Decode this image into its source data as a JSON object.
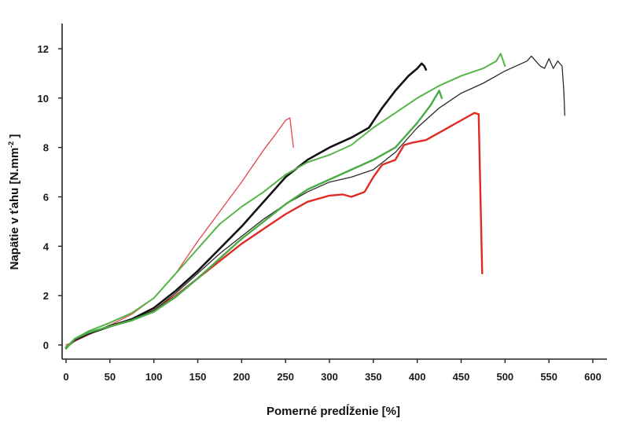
{
  "chart_data": {
    "type": "line",
    "title": "",
    "xlabel": "Pomerné predĺženie [%]",
    "ylabel_main": "Napätie v ťahu [N.mm",
    "ylabel_sup": "-2",
    "ylabel_end": " ]",
    "xlim": [
      0,
      600
    ],
    "ylim": [
      0,
      12
    ],
    "xticks": [
      "0",
      "50",
      "100",
      "150",
      "200",
      "250",
      "300",
      "350",
      "400",
      "450",
      "500",
      "550",
      "600"
    ],
    "yticks": [
      "0",
      "2",
      "4",
      "6",
      "8",
      "10",
      "12"
    ],
    "grid": false,
    "legend": "none",
    "series": [
      {
        "color": "#e8434b",
        "width": 1.3,
        "points": [
          [
            0,
            0
          ],
          [
            10,
            0.15
          ],
          [
            25,
            0.4
          ],
          [
            50,
            0.8
          ],
          [
            75,
            1.25
          ],
          [
            100,
            1.9
          ],
          [
            125,
            2.9
          ],
          [
            150,
            4.2
          ],
          [
            175,
            5.4
          ],
          [
            200,
            6.6
          ],
          [
            225,
            7.9
          ],
          [
            240,
            8.6
          ],
          [
            250,
            9.1
          ],
          [
            255,
            9.2
          ],
          [
            257,
            8.6
          ],
          [
            259,
            8.0
          ]
        ]
      },
      {
        "color": "#e02b25",
        "width": 2.4,
        "points": [
          [
            0,
            -0.1
          ],
          [
            10,
            0.2
          ],
          [
            25,
            0.45
          ],
          [
            50,
            0.75
          ],
          [
            75,
            1.0
          ],
          [
            100,
            1.4
          ],
          [
            125,
            2.0
          ],
          [
            150,
            2.7
          ],
          [
            175,
            3.4
          ],
          [
            200,
            4.1
          ],
          [
            225,
            4.7
          ],
          [
            250,
            5.3
          ],
          [
            275,
            5.8
          ],
          [
            300,
            6.05
          ],
          [
            315,
            6.1
          ],
          [
            325,
            6.0
          ],
          [
            340,
            6.2
          ],
          [
            350,
            6.8
          ],
          [
            360,
            7.3
          ],
          [
            375,
            7.5
          ],
          [
            385,
            8.1
          ],
          [
            395,
            8.2
          ],
          [
            410,
            8.3
          ],
          [
            425,
            8.6
          ],
          [
            440,
            8.9
          ],
          [
            455,
            9.2
          ],
          [
            465,
            9.4
          ],
          [
            470,
            9.35
          ],
          [
            472,
            6.0
          ],
          [
            474,
            2.9
          ]
        ]
      },
      {
        "color": "#121212",
        "width": 2.6,
        "points": [
          [
            0,
            -0.1
          ],
          [
            10,
            0.2
          ],
          [
            25,
            0.45
          ],
          [
            50,
            0.75
          ],
          [
            75,
            1.05
          ],
          [
            100,
            1.5
          ],
          [
            125,
            2.2
          ],
          [
            150,
            3.0
          ],
          [
            175,
            3.9
          ],
          [
            200,
            4.8
          ],
          [
            225,
            5.8
          ],
          [
            250,
            6.8
          ],
          [
            275,
            7.5
          ],
          [
            300,
            8.0
          ],
          [
            325,
            8.4
          ],
          [
            345,
            8.8
          ],
          [
            360,
            9.6
          ],
          [
            375,
            10.3
          ],
          [
            390,
            10.9
          ],
          [
            400,
            11.2
          ],
          [
            405,
            11.4
          ],
          [
            408,
            11.3
          ],
          [
            410,
            11.15
          ]
        ]
      },
      {
        "color": "#2a2a2a",
        "width": 1.3,
        "points": [
          [
            0,
            -0.1
          ],
          [
            10,
            0.2
          ],
          [
            25,
            0.45
          ],
          [
            50,
            0.8
          ],
          [
            75,
            1.05
          ],
          [
            100,
            1.4
          ],
          [
            125,
            2.1
          ],
          [
            150,
            2.9
          ],
          [
            175,
            3.7
          ],
          [
            200,
            4.4
          ],
          [
            225,
            5.1
          ],
          [
            250,
            5.7
          ],
          [
            275,
            6.2
          ],
          [
            300,
            6.6
          ],
          [
            325,
            6.8
          ],
          [
            350,
            7.1
          ],
          [
            375,
            7.8
          ],
          [
            400,
            8.8
          ],
          [
            425,
            9.6
          ],
          [
            450,
            10.2
          ],
          [
            475,
            10.6
          ],
          [
            500,
            11.1
          ],
          [
            525,
            11.5
          ],
          [
            530,
            11.7
          ],
          [
            535,
            11.5
          ],
          [
            540,
            11.3
          ],
          [
            545,
            11.2
          ],
          [
            550,
            11.6
          ],
          [
            555,
            11.2
          ],
          [
            560,
            11.5
          ],
          [
            565,
            11.3
          ],
          [
            567,
            10.3
          ],
          [
            568,
            9.3
          ]
        ]
      },
      {
        "color": "#58b44a",
        "width": 2.0,
        "points": [
          [
            0,
            -0.1
          ],
          [
            10,
            0.25
          ],
          [
            25,
            0.55
          ],
          [
            50,
            0.9
          ],
          [
            75,
            1.3
          ],
          [
            100,
            1.9
          ],
          [
            125,
            2.9
          ],
          [
            150,
            3.9
          ],
          [
            175,
            4.9
          ],
          [
            200,
            5.6
          ],
          [
            225,
            6.2
          ],
          [
            250,
            6.9
          ],
          [
            275,
            7.4
          ],
          [
            300,
            7.7
          ],
          [
            325,
            8.1
          ],
          [
            350,
            8.8
          ],
          [
            375,
            9.4
          ],
          [
            400,
            10.0
          ],
          [
            425,
            10.5
          ],
          [
            450,
            10.9
          ],
          [
            475,
            11.2
          ],
          [
            490,
            11.5
          ],
          [
            495,
            11.8
          ],
          [
            500,
            11.3
          ]
        ]
      },
      {
        "color": "#4aab45",
        "width": 2.4,
        "points": [
          [
            0,
            -0.15
          ],
          [
            10,
            0.25
          ],
          [
            25,
            0.5
          ],
          [
            50,
            0.75
          ],
          [
            75,
            1.0
          ],
          [
            100,
            1.35
          ],
          [
            125,
            1.95
          ],
          [
            150,
            2.7
          ],
          [
            175,
            3.5
          ],
          [
            200,
            4.3
          ],
          [
            225,
            5.0
          ],
          [
            250,
            5.7
          ],
          [
            275,
            6.3
          ],
          [
            300,
            6.7
          ],
          [
            325,
            7.1
          ],
          [
            350,
            7.5
          ],
          [
            375,
            8.0
          ],
          [
            400,
            9.0
          ],
          [
            415,
            9.7
          ],
          [
            425,
            10.3
          ],
          [
            428,
            10.0
          ]
        ]
      }
    ]
  }
}
